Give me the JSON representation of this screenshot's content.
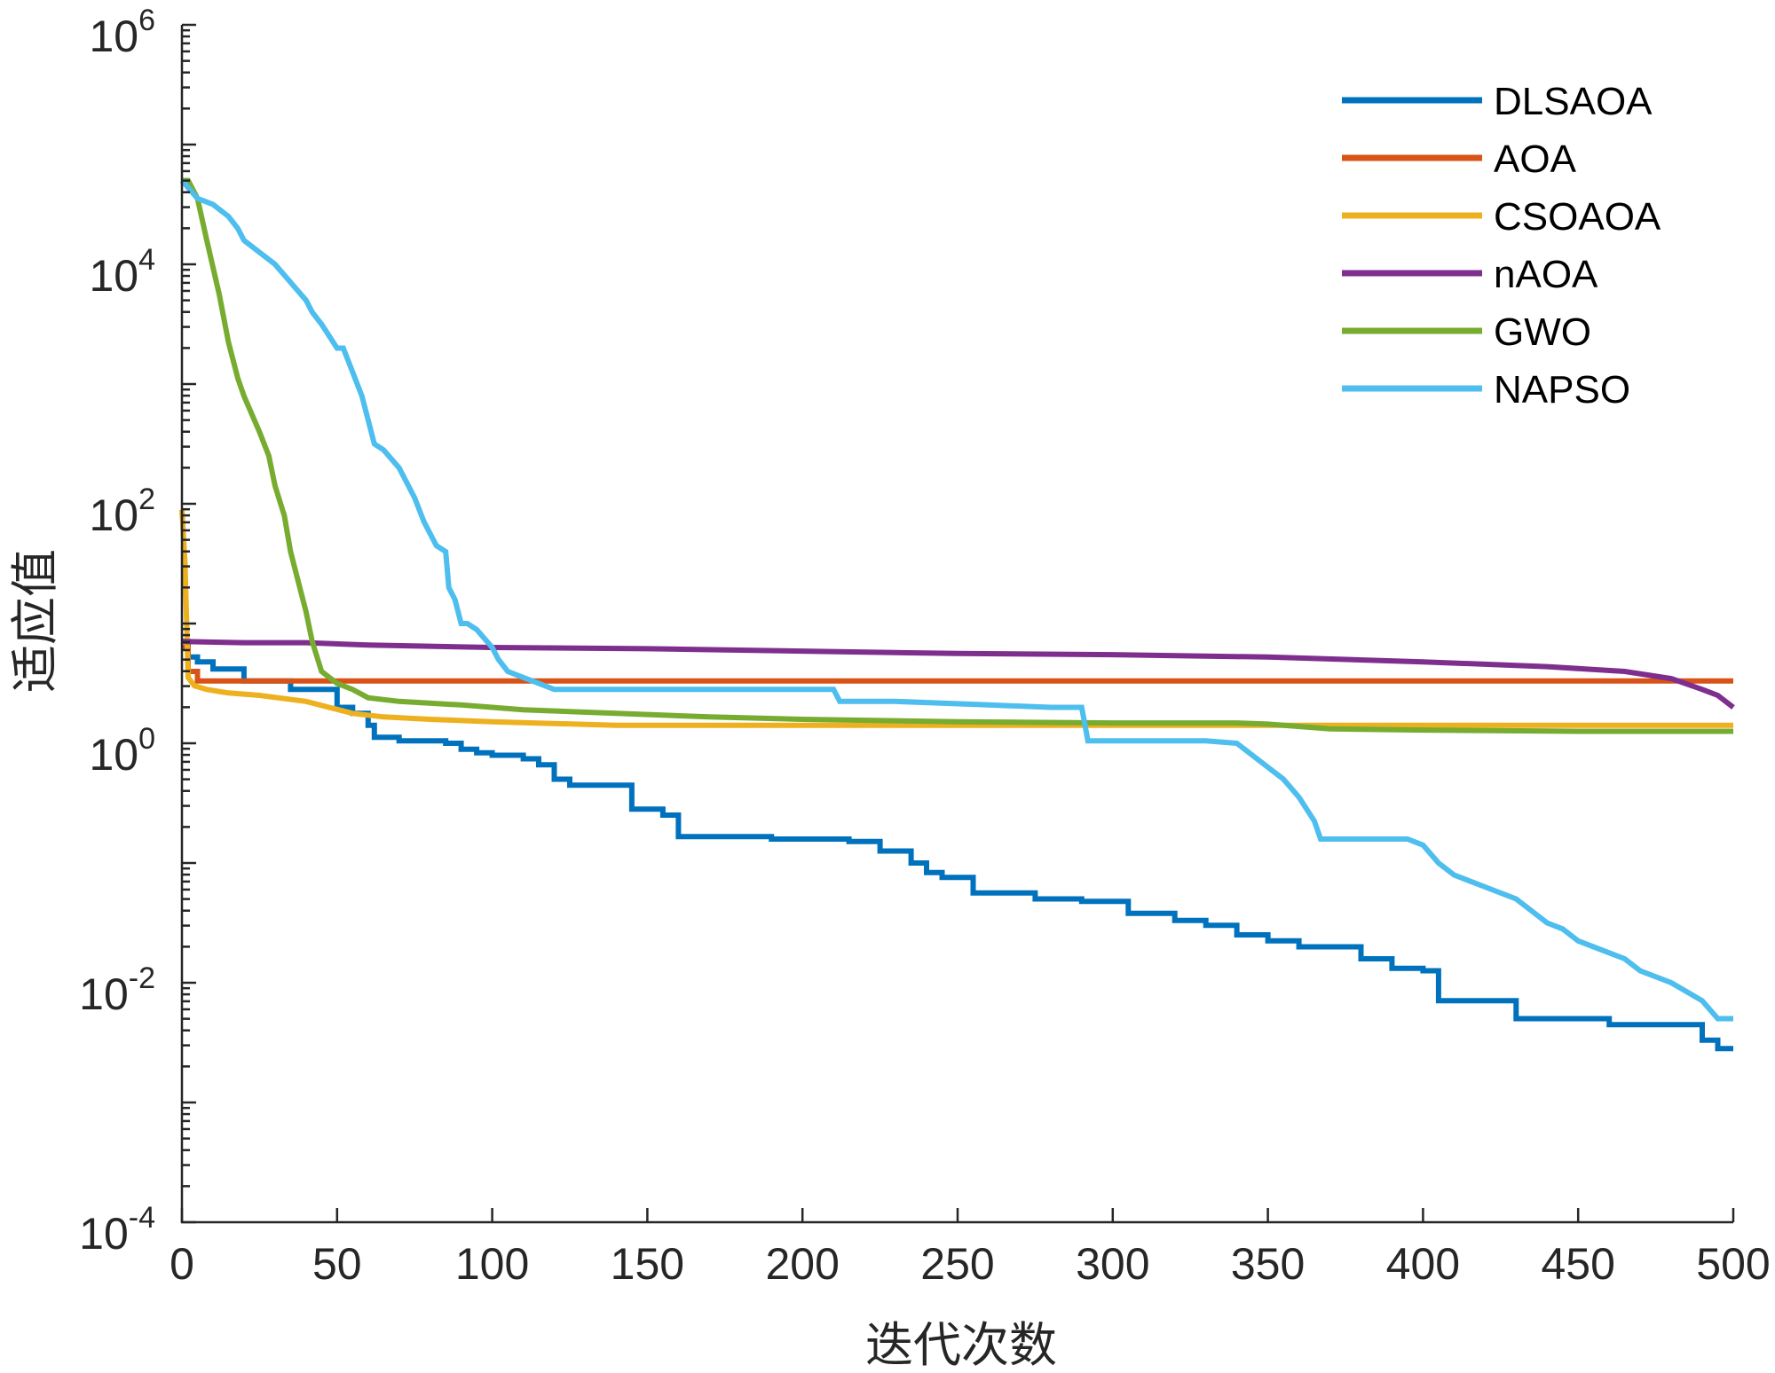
{
  "chart_data": {
    "type": "line",
    "title": "",
    "xlabel": "迭代次数",
    "ylabel": "适应值",
    "xlim": [
      0,
      500
    ],
    "ylim_log10": [
      -4,
      6
    ],
    "y_scale": "log",
    "legend_position": "top-right",
    "x_ticks": [
      {
        "value": 0,
        "label": "0"
      },
      {
        "value": 50,
        "label": "50"
      },
      {
        "value": 100,
        "label": "100"
      },
      {
        "value": 150,
        "label": "150"
      },
      {
        "value": 200,
        "label": "200"
      },
      {
        "value": 250,
        "label": "250"
      },
      {
        "value": 300,
        "label": "300"
      },
      {
        "value": 350,
        "label": "350"
      },
      {
        "value": 400,
        "label": "400"
      },
      {
        "value": 450,
        "label": "450"
      },
      {
        "value": 500,
        "label": "500"
      }
    ],
    "y_ticks": [
      {
        "exp": -4,
        "base": "10",
        "sup": "-4"
      },
      {
        "exp": -2,
        "base": "10",
        "sup": "-2"
      },
      {
        "exp": 0,
        "base": "10",
        "sup": "0"
      },
      {
        "exp": 2,
        "base": "10",
        "sup": "2"
      },
      {
        "exp": 4,
        "base": "10",
        "sup": "4"
      },
      {
        "exp": 6,
        "base": "10",
        "sup": "6"
      }
    ],
    "series": [
      {
        "name": "DLSAOA",
        "color": "#0072BD",
        "step": true,
        "x": [
          0,
          2,
          5,
          10,
          20,
          35,
          50,
          55,
          60,
          62,
          70,
          85,
          90,
          95,
          100,
          110,
          115,
          120,
          125,
          140,
          145,
          155,
          160,
          170,
          180,
          190,
          200,
          215,
          225,
          235,
          240,
          245,
          255,
          260,
          275,
          290,
          305,
          320,
          330,
          340,
          350,
          360,
          375,
          380,
          390,
          400,
          405,
          410,
          420,
          430,
          435,
          450,
          460,
          470,
          480,
          490,
          495,
          500
        ],
        "y_log10": [
          0.85,
          0.72,
          0.68,
          0.62,
          0.52,
          0.45,
          0.3,
          0.25,
          0.15,
          0.05,
          0.02,
          0.0,
          -0.05,
          -0.08,
          -0.1,
          -0.13,
          -0.18,
          -0.3,
          -0.35,
          -0.35,
          -0.55,
          -0.6,
          -0.78,
          -0.78,
          -0.78,
          -0.8,
          -0.8,
          -0.82,
          -0.9,
          -1.0,
          -1.08,
          -1.12,
          -1.25,
          -1.25,
          -1.3,
          -1.32,
          -1.42,
          -1.48,
          -1.52,
          -1.6,
          -1.65,
          -1.7,
          -1.7,
          -1.8,
          -1.88,
          -1.9,
          -2.15,
          -2.15,
          -2.15,
          -2.3,
          -2.3,
          -2.3,
          -2.35,
          -2.35,
          -2.35,
          -2.48,
          -2.55,
          -2.55
        ]
      },
      {
        "name": "AOA",
        "color": "#D95319",
        "step": true,
        "x": [
          0,
          2,
          5,
          500
        ],
        "y_log10": [
          0.8,
          0.6,
          0.52,
          0.52
        ]
      },
      {
        "name": "CSOAOA",
        "color": "#EDB120",
        "step": false,
        "x": [
          0,
          1,
          2,
          4,
          8,
          15,
          25,
          40,
          55,
          65,
          80,
          100,
          140,
          200,
          300,
          400,
          500
        ],
        "y_log10": [
          1.95,
          1.5,
          0.55,
          0.48,
          0.45,
          0.42,
          0.4,
          0.35,
          0.25,
          0.22,
          0.2,
          0.18,
          0.15,
          0.15,
          0.15,
          0.15,
          0.15
        ]
      },
      {
        "name": "nAOA",
        "color": "#7E2F8E",
        "step": false,
        "x": [
          0,
          20,
          40,
          60,
          100,
          150,
          200,
          250,
          300,
          350,
          400,
          440,
          465,
          480,
          490,
          495,
          500
        ],
        "y_log10": [
          0.85,
          0.84,
          0.84,
          0.82,
          0.8,
          0.79,
          0.77,
          0.75,
          0.74,
          0.72,
          0.68,
          0.64,
          0.6,
          0.54,
          0.45,
          0.4,
          0.3
        ]
      },
      {
        "name": "GWO",
        "color": "#77AC30",
        "step": false,
        "x": [
          0,
          2,
          5,
          8,
          12,
          15,
          18,
          20,
          25,
          28,
          30,
          33,
          35,
          38,
          40,
          42,
          45,
          50,
          55,
          60,
          70,
          90,
          110,
          140,
          170,
          200,
          250,
          300,
          340,
          350,
          370,
          400,
          450,
          500
        ],
        "y_log10": [
          4.7,
          4.7,
          4.55,
          4.2,
          3.75,
          3.35,
          3.05,
          2.9,
          2.6,
          2.4,
          2.15,
          1.9,
          1.6,
          1.3,
          1.1,
          0.85,
          0.6,
          0.5,
          0.45,
          0.38,
          0.35,
          0.32,
          0.28,
          0.25,
          0.22,
          0.2,
          0.18,
          0.17,
          0.17,
          0.16,
          0.12,
          0.11,
          0.1,
          0.1
        ]
      },
      {
        "name": "NAPSO",
        "color": "#4DBEEE",
        "step": false,
        "x": [
          0,
          5,
          10,
          15,
          18,
          20,
          25,
          30,
          35,
          40,
          42,
          45,
          50,
          52,
          55,
          58,
          62,
          65,
          70,
          75,
          78,
          82,
          85,
          86,
          88,
          90,
          92,
          95,
          100,
          102,
          105,
          110,
          115,
          120,
          130,
          160,
          180,
          200,
          210,
          212,
          230,
          260,
          280,
          290,
          292,
          300,
          330,
          340,
          345,
          350,
          355,
          360,
          365,
          367,
          380,
          395,
          400,
          405,
          410,
          420,
          430,
          435,
          440,
          445,
          450,
          460,
          465,
          470,
          480,
          490,
          495,
          500
        ],
        "y_log10": [
          4.7,
          4.55,
          4.5,
          4.4,
          4.3,
          4.2,
          4.1,
          4.0,
          3.85,
          3.7,
          3.6,
          3.5,
          3.3,
          3.3,
          3.1,
          2.9,
          2.5,
          2.45,
          2.3,
          2.05,
          1.85,
          1.65,
          1.6,
          1.3,
          1.2,
          1.0,
          1.0,
          0.95,
          0.8,
          0.7,
          0.6,
          0.55,
          0.5,
          0.45,
          0.45,
          0.45,
          0.45,
          0.45,
          0.45,
          0.35,
          0.35,
          0.32,
          0.3,
          0.3,
          0.02,
          0.02,
          0.02,
          0.0,
          -0.1,
          -0.2,
          -0.3,
          -0.45,
          -0.65,
          -0.8,
          -0.8,
          -0.8,
          -0.85,
          -1.0,
          -1.1,
          -1.2,
          -1.3,
          -1.4,
          -1.5,
          -1.55,
          -1.65,
          -1.75,
          -1.8,
          -1.9,
          -2.0,
          -2.15,
          -2.3,
          -2.3
        ]
      }
    ]
  }
}
